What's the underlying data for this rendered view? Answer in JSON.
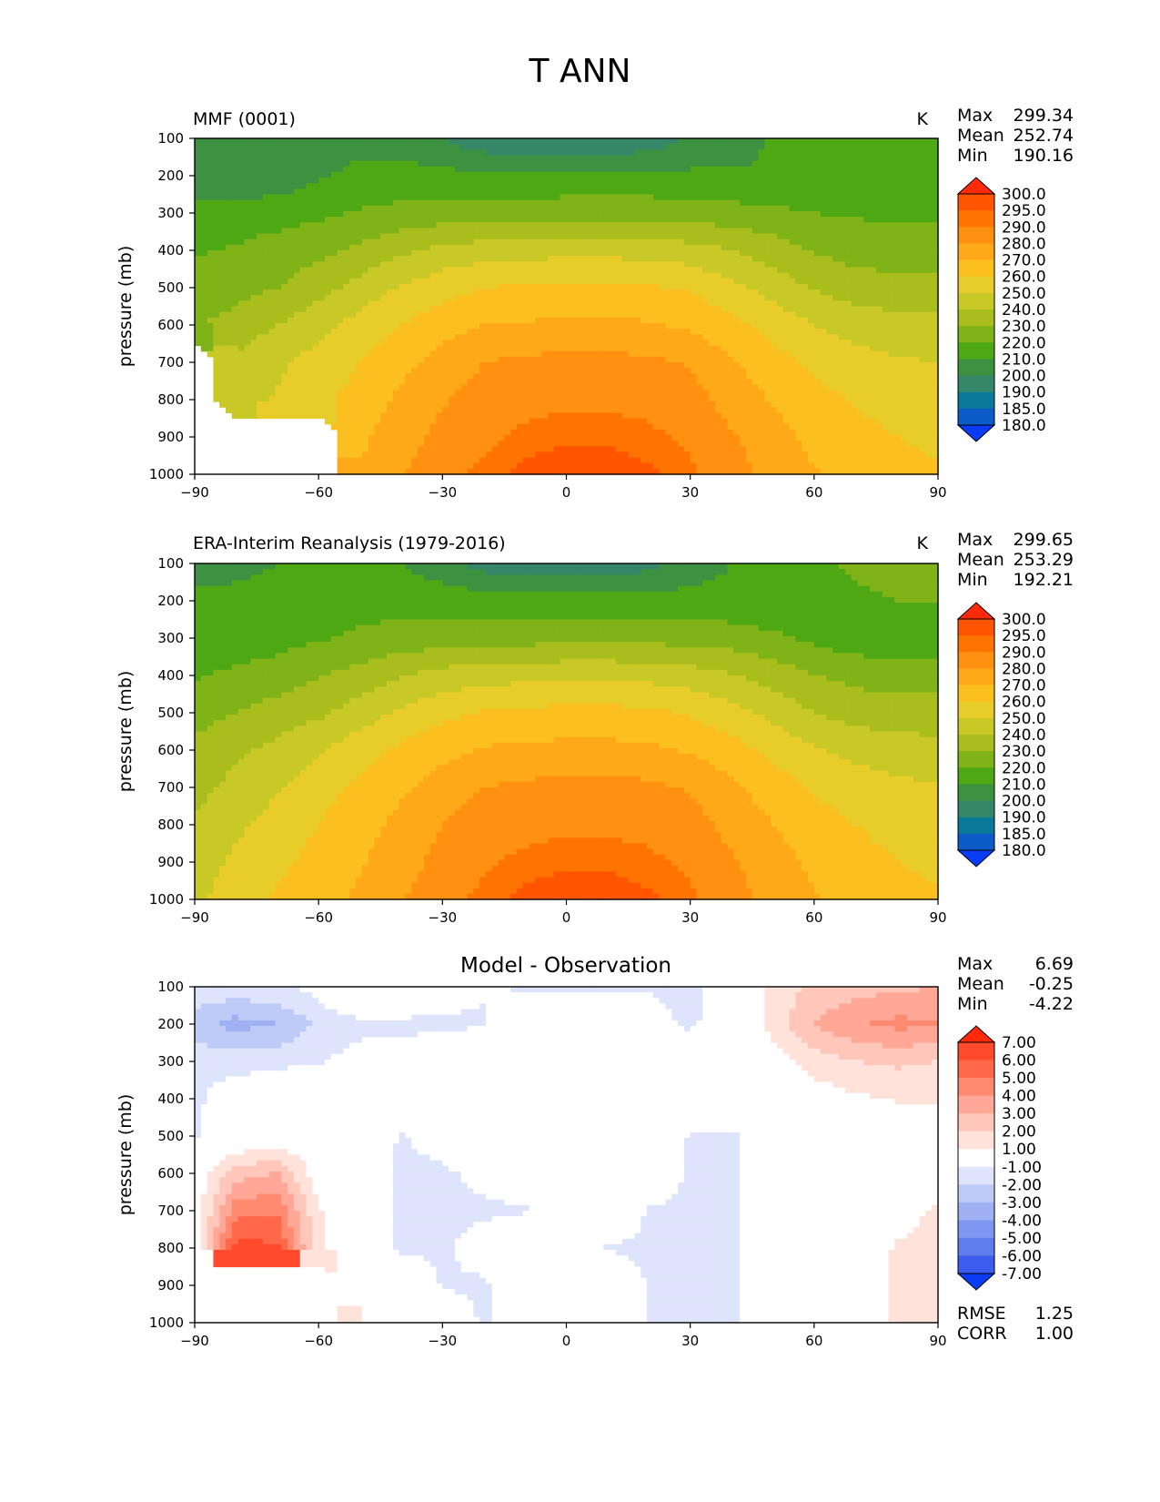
{
  "figure_title": "T ANN",
  "chart_data": [
    {
      "type": "contour",
      "left_title": "MMF (0001)",
      "center_title": "",
      "units": "K",
      "ylabel": "pressure (mb)",
      "xlabel": "",
      "xlim": [
        -90,
        90
      ],
      "ylim": [
        1000,
        100
      ],
      "x_ticks": [
        "−90",
        "−60",
        "−30",
        "0",
        "30",
        "60",
        "90"
      ],
      "y_ticks": [
        "100",
        "200",
        "300",
        "400",
        "500",
        "600",
        "700",
        "800",
        "900",
        "1000"
      ],
      "stats": [
        {
          "label": "Max",
          "value": "299.34"
        },
        {
          "label": "Mean",
          "value": "252.74"
        },
        {
          "label": "Min",
          "value": "190.16"
        }
      ],
      "colorbar_levels": [
        "300.0",
        "295.0",
        "290.0",
        "280.0",
        "270.0",
        "260.0",
        "250.0",
        "240.0",
        "230.0",
        "220.0",
        "210.0",
        "200.0",
        "190.0",
        "185.0",
        "180.0"
      ],
      "colorbar_colors": [
        "#ff2a0a",
        "#ff5500",
        "#ff7400",
        "#ff9010",
        "#ffa818",
        "#fcbf20",
        "#e8cc2a",
        "#c8c826",
        "#a9bd1c",
        "#7fb318",
        "#4ea814",
        "#3d9140",
        "#36876a",
        "#0b7a9a",
        "#0b5cc8",
        "#0a3bf5"
      ],
      "field": {
        "lats": [
          -90,
          -80,
          -70,
          -60,
          -50,
          -40,
          -30,
          -20,
          -10,
          0,
          10,
          20,
          30,
          40,
          50,
          60,
          70,
          80,
          90
        ],
        "levels": [
          100,
          200,
          300,
          400,
          500,
          600,
          700,
          800,
          900,
          1000
        ],
        "T": [
          [
            200,
            201,
            205,
            207,
            207,
            206,
            200,
            193,
            191,
            190,
            191,
            194,
            201,
            207,
            211,
            214,
            216,
            216,
            216
          ],
          [
            201,
            201,
            203,
            209,
            212,
            213,
            213,
            212,
            212,
            212,
            212,
            212,
            212,
            211,
            210,
            214,
            216,
            216,
            216
          ],
          [
            214,
            215,
            216,
            218,
            221,
            223,
            224,
            225,
            225,
            226,
            226,
            226,
            225,
            224,
            222,
            220,
            219,
            218,
            218
          ],
          [
            219,
            221,
            224,
            227,
            232,
            238,
            243,
            245,
            246,
            247,
            247,
            246,
            244,
            240,
            235,
            229,
            226,
            225,
            225
          ],
          [
            224,
            226,
            230,
            236,
            244,
            251,
            256,
            260,
            261,
            262,
            262,
            261,
            259,
            253,
            246,
            239,
            235,
            233,
            233
          ],
          [
            229,
            234,
            240,
            247,
            254,
            260,
            266,
            270,
            271,
            272,
            272,
            271,
            268,
            263,
            256,
            250,
            246,
            244,
            243
          ],
          [
            null,
            242,
            248,
            254,
            260,
            267,
            274,
            280,
            282,
            283,
            283,
            282,
            279,
            271,
            264,
            258,
            254,
            251,
            250
          ],
          [
            null,
            245,
            251,
            257,
            264,
            272,
            279,
            284,
            287,
            288,
            288,
            287,
            284,
            276,
            269,
            263,
            259,
            256,
            254
          ],
          [
            null,
            null,
            null,
            null,
            268,
            276,
            283,
            288,
            292,
            294,
            294,
            292,
            288,
            281,
            274,
            267,
            263,
            260,
            258
          ],
          [
            null,
            null,
            null,
            null,
            271,
            279,
            287,
            292,
            297,
            299,
            299,
            296,
            292,
            284,
            277,
            271,
            266,
            263,
            261
          ]
        ]
      }
    },
    {
      "type": "contour",
      "left_title": "ERA-Interim Reanalysis (1979-2016)",
      "center_title": "",
      "units": "K",
      "ylabel": "pressure (mb)",
      "xlabel": "",
      "xlim": [
        -90,
        90
      ],
      "ylim": [
        1000,
        100
      ],
      "x_ticks": [
        "−90",
        "−60",
        "−30",
        "0",
        "30",
        "60",
        "90"
      ],
      "y_ticks": [
        "100",
        "200",
        "300",
        "400",
        "500",
        "600",
        "700",
        "800",
        "900",
        "1000"
      ],
      "stats": [
        {
          "label": "Max",
          "value": "299.65"
        },
        {
          "label": "Mean",
          "value": "253.29"
        },
        {
          "label": "Min",
          "value": "192.21"
        }
      ],
      "colorbar_levels": [
        "300.0",
        "295.0",
        "290.0",
        "280.0",
        "270.0",
        "260.0",
        "250.0",
        "240.0",
        "230.0",
        "220.0",
        "210.0",
        "200.0",
        "190.0",
        "185.0",
        "180.0"
      ],
      "colorbar_colors": [
        "#ff2a0a",
        "#ff5500",
        "#ff7400",
        "#ff9010",
        "#ffa818",
        "#fcbf20",
        "#e8cc2a",
        "#c8c826",
        "#a9bd1c",
        "#7fb318",
        "#4ea814",
        "#3d9140",
        "#36876a",
        "#0b7a9a",
        "#0b5cc8",
        "#0a3bf5"
      ],
      "field": {
        "lats": [
          -90,
          -80,
          -70,
          -60,
          -50,
          -40,
          -30,
          -20,
          -10,
          0,
          10,
          20,
          30,
          40,
          50,
          60,
          70,
          80,
          90
        ],
        "levels": [
          100,
          200,
          300,
          400,
          500,
          600,
          700,
          800,
          900,
          1000
        ],
        "T": [
          [
            205,
            207,
            210,
            212,
            212,
            210,
            203,
            196,
            193,
            192,
            193,
            197,
            204,
            210,
            214,
            219,
            221,
            222,
            222
          ],
          [
            213,
            213,
            214,
            215,
            216,
            216,
            216,
            215,
            214,
            214,
            214,
            214,
            214,
            213,
            212,
            215,
            219,
            220,
            220
          ],
          [
            213,
            214,
            216,
            219,
            222,
            224,
            225,
            226,
            226,
            227,
            227,
            227,
            226,
            225,
            222,
            218,
            214,
            213,
            213
          ],
          [
            219,
            222,
            225,
            229,
            234,
            239,
            244,
            246,
            247,
            248,
            248,
            247,
            245,
            241,
            236,
            230,
            227,
            226,
            226
          ],
          [
            226,
            230,
            234,
            238,
            245,
            252,
            257,
            261,
            262,
            263,
            263,
            262,
            259,
            254,
            247,
            240,
            236,
            234,
            234
          ],
          [
            233,
            238,
            243,
            249,
            256,
            262,
            267,
            271,
            272,
            273,
            273,
            272,
            269,
            264,
            257,
            251,
            247,
            245,
            244
          ],
          [
            237,
            243,
            249,
            256,
            262,
            268,
            275,
            280,
            282,
            283,
            283,
            282,
            279,
            272,
            265,
            259,
            255,
            252,
            251
          ],
          [
            241,
            248,
            254,
            260,
            266,
            273,
            280,
            285,
            287,
            288,
            288,
            287,
            284,
            277,
            270,
            264,
            260,
            257,
            255
          ],
          [
            245,
            252,
            258,
            263,
            269,
            276,
            283,
            289,
            292,
            294,
            294,
            292,
            288,
            281,
            274,
            268,
            263,
            260,
            258
          ],
          [
            248,
            255,
            261,
            266,
            272,
            279,
            287,
            292,
            297,
            299,
            299,
            296,
            292,
            284,
            277,
            271,
            266,
            263,
            261
          ]
        ]
      }
    },
    {
      "type": "contour",
      "left_title": "",
      "center_title": "Model - Observation",
      "units": "",
      "ylabel": "pressure (mb)",
      "xlabel": "",
      "xlim": [
        -90,
        90
      ],
      "ylim": [
        1000,
        100
      ],
      "x_ticks": [
        "−90",
        "−60",
        "−30",
        "0",
        "30",
        "60",
        "90"
      ],
      "y_ticks": [
        "100",
        "200",
        "300",
        "400",
        "500",
        "600",
        "700",
        "800",
        "900",
        "1000"
      ],
      "stats": [
        {
          "label": "Max",
          "value": "6.69"
        },
        {
          "label": "Mean",
          "value": "-0.25"
        },
        {
          "label": "Min",
          "value": "-4.22"
        }
      ],
      "extra_stats": [
        {
          "label": "RMSE",
          "value": "1.25"
        },
        {
          "label": "CORR",
          "value": "1.00"
        }
      ],
      "colorbar_levels": [
        "7.00",
        "6.00",
        "5.00",
        "4.00",
        "3.00",
        "2.00",
        "1.00",
        "-1.00",
        "-2.00",
        "-3.00",
        "-4.00",
        "-5.00",
        "-6.00",
        "-7.00"
      ],
      "colorbar_colors": [
        "#ff2a0a",
        "#ff4a2c",
        "#ff6848",
        "#ff8a70",
        "#ffa898",
        "#ffc6ba",
        "#ffe2da",
        "#ffffff",
        "#dde4fb",
        "#bfcbf7",
        "#9fb1f3",
        "#7f97f0",
        "#5f7ded",
        "#3c5df0",
        "#0a3bf5"
      ],
      "field": {
        "lats": [
          -90,
          -80,
          -70,
          -60,
          -50,
          -40,
          -30,
          -20,
          -10,
          0,
          10,
          20,
          30,
          40,
          50,
          60,
          70,
          80,
          90
        ],
        "levels": [
          100,
          200,
          300,
          400,
          500,
          600,
          700,
          800,
          900,
          1000
        ],
        "T": [
          [
            -1.2,
            -1.3,
            -1.2,
            -0.6,
            1.1,
            1.1,
            -0.3,
            -0.9,
            -1.1,
            -1.2,
            -1.1,
            -1.1,
            -1.2,
            -0.4,
            1.4,
            2.2,
            2.5,
            2.8,
            3.0
          ],
          [
            -2.6,
            -3.4,
            -3.0,
            -1.8,
            -1.3,
            -1.4,
            -1.3,
            -1.1,
            -0.3,
            -0.2,
            -0.3,
            -0.6,
            -1.2,
            -0.3,
            1.3,
            3.1,
            3.9,
            4.3,
            4.1
          ],
          [
            -1.3,
            -1.4,
            -1.3,
            -1.1,
            -0.6,
            -0.2,
            0.1,
            0.2,
            0.2,
            0.1,
            0.1,
            0.0,
            0.0,
            0.1,
            0.6,
            1.4,
            2.0,
            2.2,
            2.0
          ],
          [
            -1.2,
            -0.4,
            0.2,
            0.1,
            0.1,
            0.0,
            0.0,
            0.1,
            0.1,
            0.0,
            0.0,
            0.0,
            0.0,
            0.1,
            0.3,
            0.5,
            0.8,
            1.1,
            1.1
          ],
          [
            -1.1,
            -0.3,
            0.1,
            0.1,
            0.2,
            -1.1,
            -0.4,
            0.1,
            0.1,
            0.0,
            0.0,
            0.0,
            -1.1,
            -1.2,
            0.1,
            0.1,
            0.1,
            0.2,
            0.2
          ],
          [
            0.2,
            2.5,
            3.1,
            0.3,
            0.1,
            -1.4,
            -1.2,
            -0.7,
            -0.3,
            0.0,
            0.0,
            0.0,
            -1.2,
            -1.3,
            0.1,
            0.2,
            0.2,
            0.2,
            0.3
          ],
          [
            0.3,
            4.6,
            4.8,
            1.1,
            0.1,
            -1.3,
            -1.3,
            -1.2,
            -1.1,
            0.1,
            0.1,
            -1.1,
            -1.2,
            -1.3,
            0.0,
            0.1,
            0.2,
            0.5,
            1.2
          ],
          [
            0.3,
            6.4,
            6.2,
            1.2,
            0.2,
            -1.2,
            -1.2,
            -0.4,
            -0.1,
            0.0,
            -1.1,
            -1.2,
            -1.2,
            -1.3,
            0.0,
            0.1,
            0.3,
            1.1,
            1.3
          ],
          [
            null,
            null,
            null,
            null,
            0.3,
            0.1,
            -1.1,
            -1.2,
            0.1,
            0.0,
            0.1,
            -1.1,
            -1.2,
            -1.3,
            0.0,
            0.1,
            0.3,
            1.1,
            1.3
          ],
          [
            null,
            null,
            null,
            null,
            1.1,
            0.2,
            0.1,
            -1.2,
            0.1,
            0.0,
            0.2,
            -1.1,
            -1.2,
            -1.3,
            0.1,
            0.1,
            0.3,
            1.1,
            1.3
          ]
        ]
      }
    }
  ]
}
